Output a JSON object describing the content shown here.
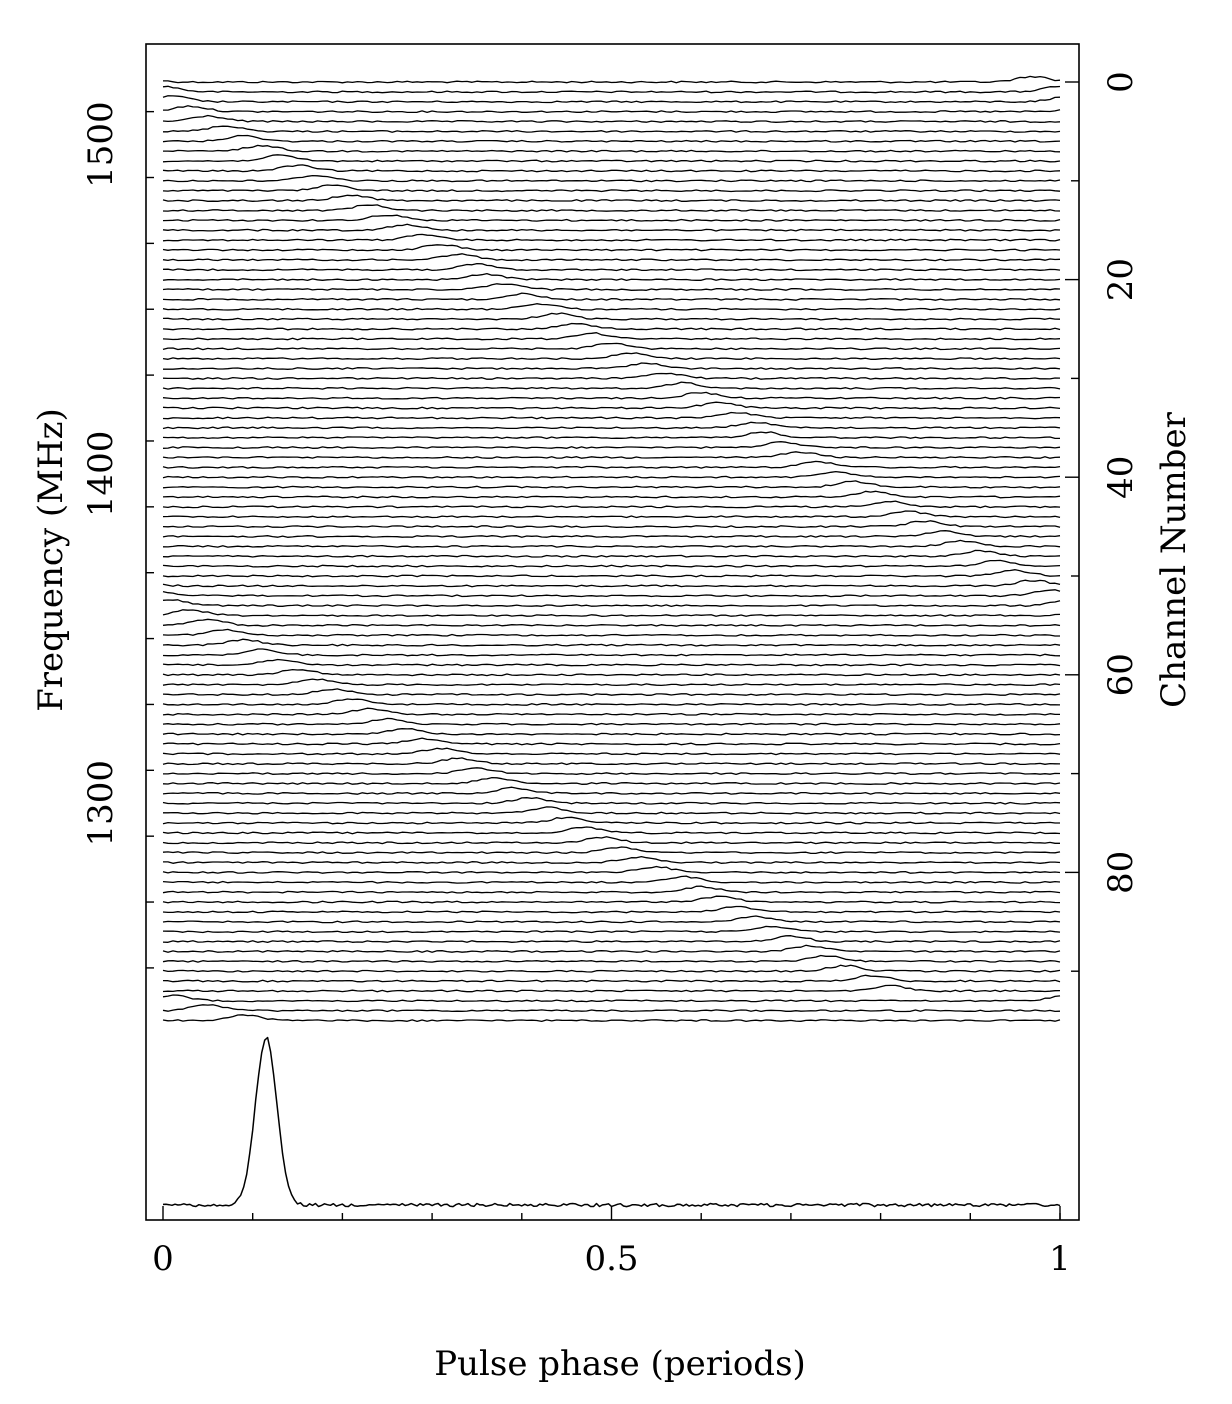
{
  "chart_data": {
    "type": "line",
    "xlabel": "Pulse phase (periods)",
    "ylabel": "Frequency (MHz)",
    "y2label": "Channel Number",
    "xlim": [
      0,
      1
    ],
    "x_ticks": [
      {
        "value": 0,
        "label": "0"
      },
      {
        "value": 0.5,
        "label": "0.5"
      },
      {
        "value": 1,
        "label": "1"
      }
    ],
    "frequency_ticks": [
      {
        "value": 1500,
        "label": "1500"
      },
      {
        "value": 1400,
        "label": "1400"
      },
      {
        "value": 1300,
        "label": "1300"
      }
    ],
    "channel_ticks": [
      {
        "value": 0,
        "label": "0"
      },
      {
        "value": 20,
        "label": "20"
      },
      {
        "value": 40,
        "label": "40"
      },
      {
        "value": 60,
        "label": "60"
      },
      {
        "value": 80,
        "label": "80"
      }
    ],
    "channels": {
      "count": 96,
      "first": 0,
      "last": 95,
      "frequency_at_channel_0": 1519,
      "frequency_step_mhz": -3.0,
      "pulse_peak_phase": [
        0.97,
        1.0,
        0.01,
        0.03,
        0.05,
        0.07,
        0.09,
        0.11,
        0.13,
        0.15,
        0.17,
        0.19,
        0.21,
        0.23,
        0.25,
        0.27,
        0.29,
        0.31,
        0.33,
        0.35,
        0.36,
        0.38,
        0.4,
        0.42,
        0.44,
        0.46,
        0.48,
        0.5,
        0.52,
        0.54,
        0.56,
        0.58,
        0.6,
        0.62,
        0.64,
        0.66,
        0.67,
        0.69,
        0.71,
        0.73,
        0.75,
        0.77,
        0.79,
        0.81,
        0.83,
        0.85,
        0.87,
        0.89,
        0.91,
        0.93,
        0.95,
        0.97,
        0.99,
        0.01,
        0.03,
        0.05,
        0.07,
        0.09,
        0.11,
        0.13,
        0.15,
        0.17,
        0.19,
        0.21,
        0.23,
        0.25,
        0.27,
        0.29,
        0.31,
        0.33,
        0.35,
        0.37,
        0.39,
        0.41,
        0.43,
        0.45,
        0.47,
        0.49,
        0.51,
        0.53,
        0.55,
        0.58,
        0.6,
        0.62,
        0.64,
        0.66,
        0.68,
        0.7,
        0.72,
        0.74,
        0.76,
        0.79,
        0.81,
        0.01,
        0.05,
        0.09
      ]
    },
    "summed_profile": {
      "peak_phase": 0.115,
      "width_periods": 0.028
    },
    "grid": false,
    "legend": "none"
  }
}
